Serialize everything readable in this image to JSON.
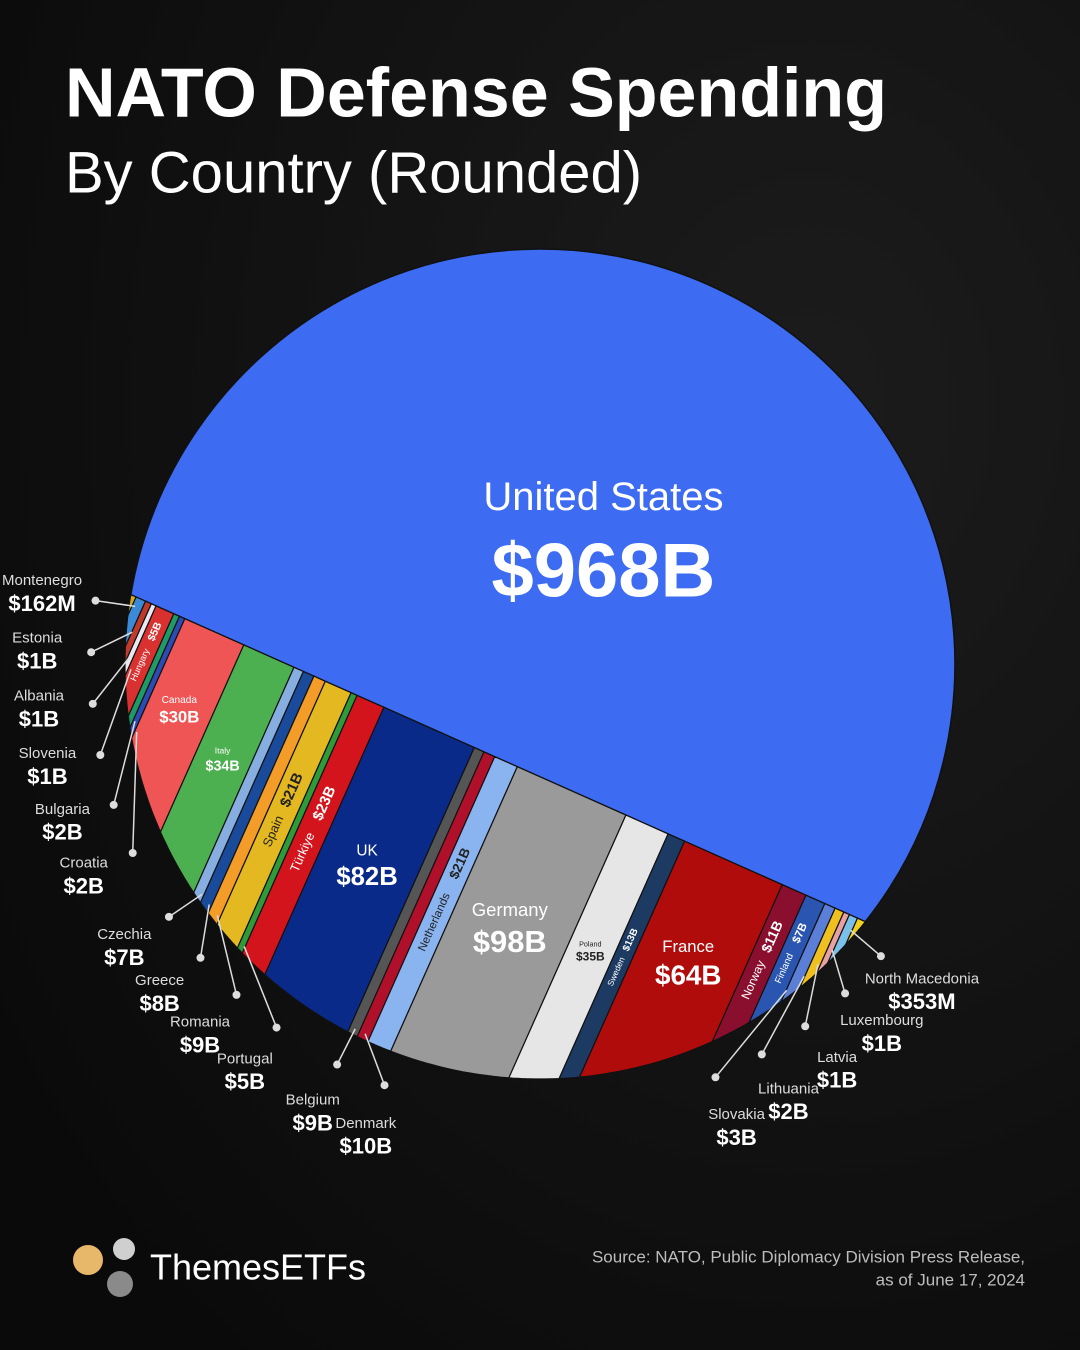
{
  "chart_data": {
    "type": "voronoi-treemap",
    "title": "NATO Defense Spending",
    "subtitle": "By Country (Rounded)",
    "source": [
      "Source: NATO, Public Diplomacy Division Press Release,",
      "as of June 17, 2024"
    ],
    "brand": "ThemesETFs",
    "categories": [
      "United States",
      "Montenegro",
      "Estonia",
      "Albania",
      "Slovenia",
      "Hungary",
      "Bulgaria",
      "Croatia",
      "Canada",
      "Italy",
      "Czechia",
      "Greece",
      "Romania",
      "Spain",
      "Portugal",
      "Türkiye",
      "UK",
      "Belgium",
      "Denmark",
      "Netherlands",
      "Germany",
      "Poland",
      "Sweden",
      "France",
      "Norway",
      "Finland",
      "Slovakia",
      "Lithuania",
      "Latvia",
      "Luxembourg",
      "North Macedonia"
    ],
    "values": [
      968,
      0.162,
      1,
      1,
      1,
      5,
      2,
      2,
      30,
      34,
      7,
      8,
      9,
      21,
      5,
      23,
      82,
      9,
      10,
      21,
      98,
      35,
      13,
      64,
      11,
      7,
      3,
      2,
      1,
      1,
      0.353
    ],
    "value_labels": [
      "$968B",
      "$162M",
      "$1B",
      "$1B",
      "$1B",
      "$5B",
      "$2B",
      "$2B",
      "$30B",
      "$34B",
      "$7B",
      "$8B",
      "$9B",
      "$21B",
      "$5B",
      "$23B",
      "$82B",
      "$9B",
      "$10B",
      "$21B",
      "$98B",
      "$35B",
      "$13B",
      "$64B",
      "$11B",
      "$7B",
      "$3B",
      "$2B",
      "$1B",
      "$1B",
      "$353M"
    ],
    "colors": [
      "#3d6cf2",
      "#d4a91c",
      "#3a8ad8",
      "#c0392b",
      "#e9e9f2",
      "#d93030",
      "#1e9a66",
      "#2d4bb5",
      "#f05555",
      "#4caf50",
      "#87aee0",
      "#1a4b9a",
      "#f39c28",
      "#e3b820",
      "#2e9a3a",
      "#d4141c",
      "#0a2a8a",
      "#555555",
      "#b0102a",
      "#8ab4f0",
      "#9a9a9a",
      "#e6e6e6",
      "#1d3a63",
      "#b00c0c",
      "#8a0f2e",
      "#2a55b0",
      "#5b7fd6",
      "#f0c020",
      "#e8a0a0",
      "#7ac0ea",
      "#f5d020"
    ]
  }
}
